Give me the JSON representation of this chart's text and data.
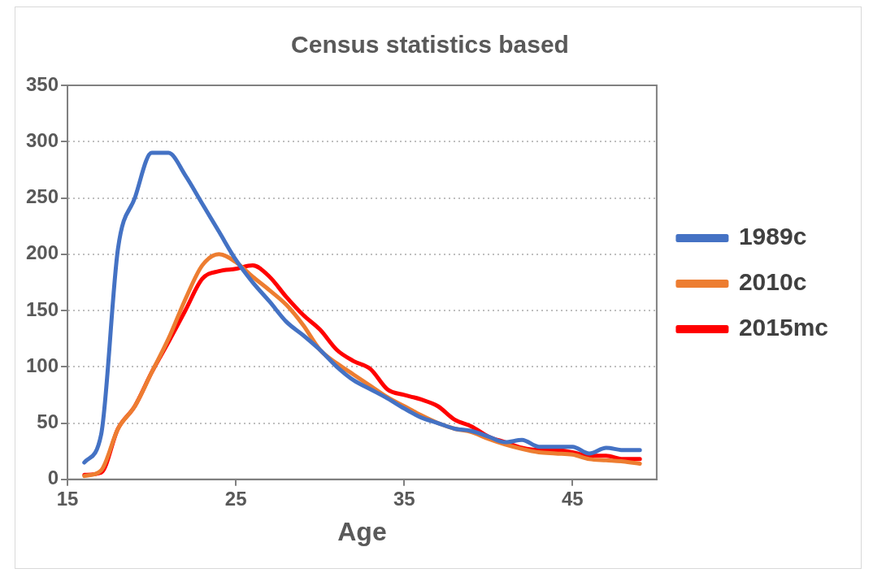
{
  "chart_data": {
    "type": "line",
    "title": "Census statistics based",
    "xlabel": "Age",
    "x": [
      16,
      17,
      18,
      19,
      20,
      21,
      22,
      23,
      24,
      25,
      26,
      27,
      28,
      29,
      30,
      31,
      32,
      33,
      34,
      35,
      36,
      37,
      38,
      39,
      40,
      41,
      42,
      43,
      44,
      45,
      46,
      47,
      48,
      49
    ],
    "xlim": [
      15,
      50
    ],
    "xticks": [
      15,
      25,
      35,
      45
    ],
    "ylim": [
      0,
      350
    ],
    "yticks": [
      0,
      50,
      100,
      150,
      200,
      250,
      300,
      350
    ],
    "grid": "y",
    "legend": "right",
    "marker": "none",
    "line_style": "solid",
    "series": [
      {
        "name": "1989c",
        "color": "#4472c4",
        "values": [
          15,
          40,
          205,
          250,
          290,
          290,
          270,
          245,
          220,
          195,
          175,
          158,
          140,
          128,
          115,
          100,
          88,
          80,
          72,
          63,
          55,
          50,
          45,
          43,
          38,
          33,
          35,
          29,
          29,
          29,
          23,
          28,
          26,
          26
        ]
      },
      {
        "name": "2010c",
        "color": "#ed7d31",
        "values": [
          3,
          8,
          45,
          65,
          95,
          125,
          160,
          190,
          200,
          193,
          180,
          168,
          155,
          137,
          115,
          103,
          93,
          83,
          73,
          65,
          57,
          50,
          45,
          42,
          36,
          31,
          27,
          24,
          23,
          22,
          18,
          17,
          16,
          14
        ]
      },
      {
        "name": "2015mc",
        "color": "#ff0000",
        "values": [
          4,
          6,
          45,
          65,
          95,
          122,
          150,
          178,
          185,
          187,
          190,
          180,
          162,
          146,
          133,
          115,
          105,
          98,
          80,
          75,
          71,
          65,
          53,
          47,
          38,
          33,
          28,
          26,
          26,
          24,
          21,
          21,
          18,
          18
        ]
      }
    ]
  }
}
